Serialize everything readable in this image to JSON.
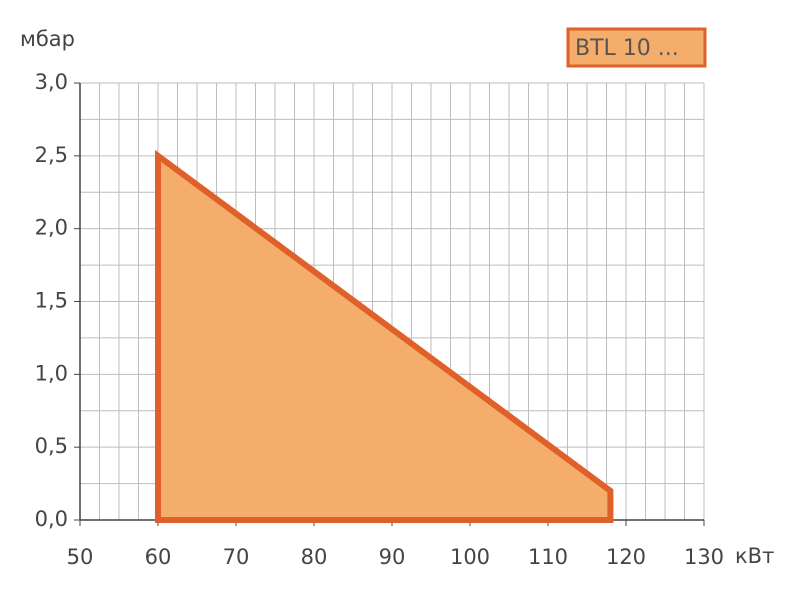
{
  "chart_data": {
    "type": "area",
    "annotation": "BTL 10 ...",
    "y_label": "мбар",
    "x_label": "кВт",
    "x": [
      60,
      60,
      118,
      118
    ],
    "values": [
      0,
      2.5,
      0.2,
      0
    ],
    "color": "#f4ad6a",
    "edge_color": "#e0602a",
    "xlim": [
      50,
      130
    ],
    "xticks": [
      50,
      60,
      70,
      80,
      90,
      100,
      110,
      120,
      130
    ],
    "ylim": [
      0,
      3
    ],
    "yticks": [
      {
        "value": 0,
        "label": "0,0"
      },
      {
        "value": 0.5,
        "label": "0,5"
      },
      {
        "value": 1,
        "label": "1,0"
      },
      {
        "value": 1.5,
        "label": "1,5"
      },
      {
        "value": 2,
        "label": "2,0"
      },
      {
        "value": 2.5,
        "label": "2,5"
      },
      {
        "value": 3,
        "label": "3,0"
      }
    ],
    "grid": true
  }
}
